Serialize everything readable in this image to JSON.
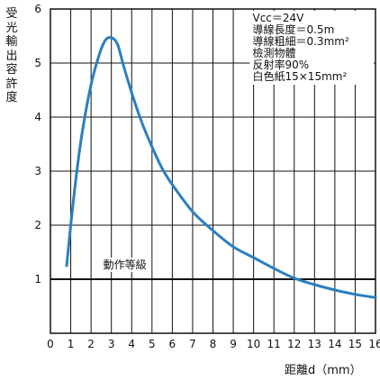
{
  "chart_data": {
    "type": "line",
    "title": "",
    "xlabel": "距離d（mm）",
    "ylabel": "受光輸出容許度",
    "xlim": [
      0,
      16
    ],
    "ylim": [
      0,
      6
    ],
    "x_ticks": [
      "0",
      "1",
      "2",
      "3",
      "4",
      "5",
      "6",
      "7",
      "8",
      "9",
      "10",
      "11",
      "12",
      "13",
      "14",
      "15",
      "16"
    ],
    "y_ticks": [
      "1",
      "2",
      "3",
      "4",
      "5",
      "6"
    ],
    "grid": true,
    "line_color": "#2a7fc0",
    "annotations": {
      "threshold_label": "動作等級",
      "threshold_value": 1,
      "conditions": [
        "Vcc＝24V",
        "導線長度＝0.5m",
        "導線粗細＝0.3mm²",
        "檢測物體",
        "反射率90%",
        "白色紙15×15mm²"
      ]
    },
    "series": [
      {
        "x": [
          0.8,
          1.0,
          1.3,
          1.6,
          2.0,
          2.4,
          2.7,
          3.0,
          3.3,
          3.6,
          4.0,
          4.5,
          5.0,
          5.5,
          6.0,
          7.0,
          8.0,
          9.0,
          10.0,
          11.0,
          12.0,
          13.0,
          14.0,
          15.0,
          16.0
        ],
        "y": [
          1.25,
          2.0,
          3.0,
          3.8,
          4.6,
          5.15,
          5.42,
          5.47,
          5.35,
          4.95,
          4.45,
          3.9,
          3.45,
          3.05,
          2.75,
          2.25,
          1.9,
          1.6,
          1.4,
          1.2,
          1.02,
          0.9,
          0.8,
          0.72,
          0.66
        ]
      }
    ]
  }
}
